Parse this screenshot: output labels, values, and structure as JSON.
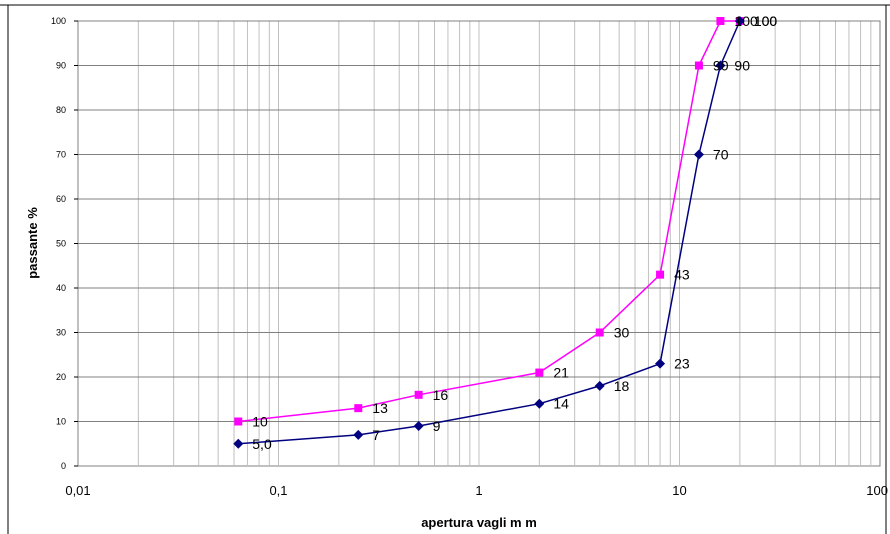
{
  "chart_data": {
    "type": "line",
    "xscale": "log",
    "xlim": [
      0.01,
      100
    ],
    "ylim": [
      0,
      100
    ],
    "x_ticks": [
      "0,01",
      "0,1",
      "1",
      "10",
      "100"
    ],
    "y_ticks": [
      "0",
      "10",
      "20",
      "30",
      "40",
      "50",
      "60",
      "70",
      "80",
      "90",
      "100"
    ],
    "xlabel": "apertura vagli m m",
    "ylabel": "passante %",
    "title": "",
    "grid": true,
    "legend": false,
    "series": [
      {
        "color": "#FF00FF",
        "marker": "square",
        "x": [
          0.063,
          0.25,
          0.5,
          2,
          4,
          8,
          12.5,
          16,
          20
        ],
        "y": [
          10,
          13,
          16,
          21,
          30,
          43,
          90,
          100,
          100
        ],
        "labels": [
          "10",
          "13",
          "16",
          "21",
          "30",
          "43",
          "90",
          "100",
          "100"
        ]
      },
      {
        "color": "#000080",
        "marker": "diamond",
        "x": [
          0.063,
          0.25,
          0.5,
          2,
          4,
          8,
          12.5,
          16,
          20
        ],
        "y": [
          5,
          7,
          9,
          14,
          18,
          23,
          70,
          90,
          100
        ],
        "labels": [
          "5,0",
          "7",
          "9",
          "14",
          "18",
          "23",
          "70",
          "90",
          "100"
        ]
      }
    ]
  }
}
